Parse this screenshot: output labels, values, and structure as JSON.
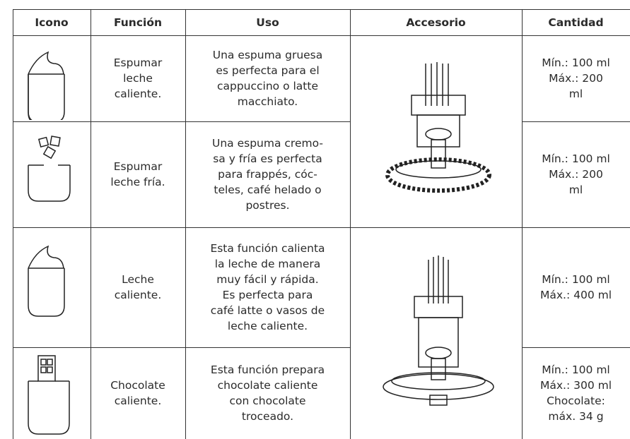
{
  "table": {
    "headers": [
      "Icono",
      "Función",
      "Uso",
      "Accesorio",
      "Cantidad"
    ],
    "rows": [
      {
        "funcion": "Espumar\nleche\ncaliente.",
        "uso": "Una espuma gruesa\nes perfecta para el\ncappuccino o latte\nmacchiato.",
        "cantidad": "Mín.: 100 ml\nMáx.: 200\nml"
      },
      {
        "funcion": "Espumar\nleche fría.",
        "uso": "Una espuma cremo-\nsa y fría es perfecta\npara frappés, cóc-\nteles, café helado o\npostres.",
        "cantidad": "Mín.: 100 ml\nMáx.: 200\nml"
      },
      {
        "funcion": "Leche\ncaliente.",
        "uso": "Esta función calienta\nla leche de manera\nmuy fácil y rápida.\nEs perfecta para\ncafé latte o vasos de\nleche caliente.",
        "cantidad": "Mín.: 100 ml\nMáx.: 400 ml"
      },
      {
        "funcion": "Chocolate\ncaliente.",
        "uso": "Esta función prepara\nchocolate caliente\ncon chocolate\ntroceado.",
        "cantidad": "Mín.: 100 ml\nMáx.: 300 ml\nChocolate:\nmáx. 34 g"
      }
    ]
  }
}
